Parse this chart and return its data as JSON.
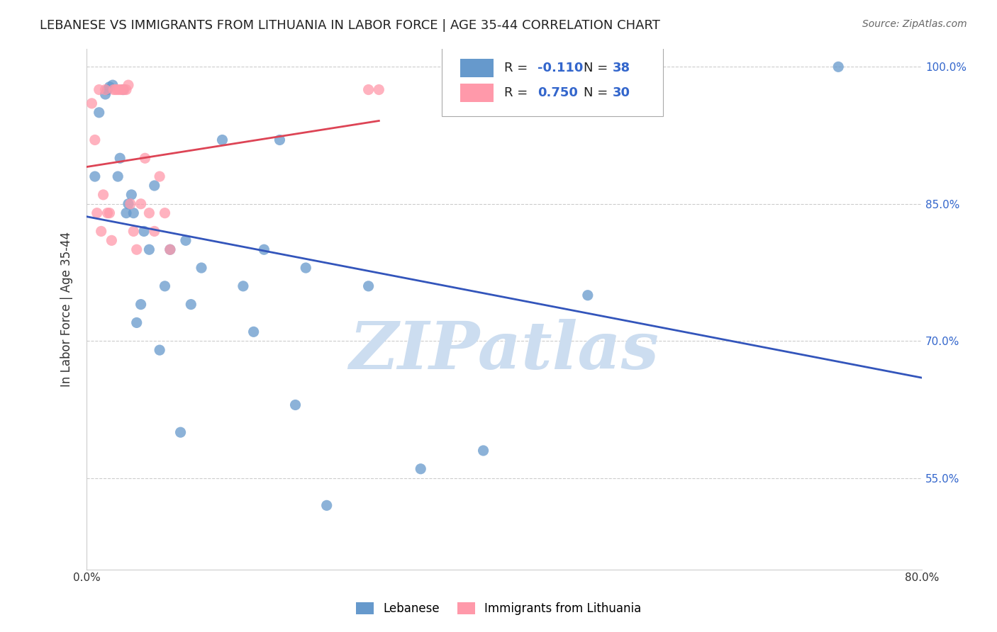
{
  "title": "LEBANESE VS IMMIGRANTS FROM LITHUANIA IN LABOR FORCE | AGE 35-44 CORRELATION CHART",
  "source": "Source: ZipAtlas.com",
  "xlabel": "",
  "ylabel": "In Labor Force | Age 35-44",
  "xlim": [
    0.0,
    0.8
  ],
  "ylim": [
    0.45,
    1.02
  ],
  "xticks": [
    0.0,
    0.1,
    0.2,
    0.3,
    0.4,
    0.5,
    0.6,
    0.7,
    0.8
  ],
  "xtick_labels": [
    "0.0%",
    "",
    "",
    "",
    "",
    "",
    "",
    "",
    "80.0%"
  ],
  "ytick_positions": [
    0.55,
    0.7,
    0.85,
    1.0
  ],
  "ytick_labels": [
    "55.0%",
    "70.0%",
    "85.0%",
    "100.0%"
  ],
  "legend_r1": "R = -0.110",
  "legend_n1": "N = 38",
  "legend_r2": "R = 0.750",
  "legend_n2": "N = 30",
  "blue_color": "#6699CC",
  "pink_color": "#FF99AA",
  "line_blue": "#3355BB",
  "line_pink": "#DD4455",
  "watermark": "ZIPatlas",
  "watermark_color": "#CCDDF0",
  "blue_x": [
    0.008,
    0.012,
    0.018,
    0.02,
    0.022,
    0.025,
    0.03,
    0.032,
    0.035,
    0.038,
    0.04,
    0.043,
    0.045,
    0.048,
    0.052,
    0.055,
    0.06,
    0.065,
    0.07,
    0.075,
    0.08,
    0.09,
    0.095,
    0.1,
    0.11,
    0.13,
    0.15,
    0.16,
    0.17,
    0.185,
    0.2,
    0.21,
    0.23,
    0.27,
    0.32,
    0.38,
    0.48,
    0.72
  ],
  "blue_y": [
    0.88,
    0.95,
    0.97,
    0.975,
    0.978,
    0.98,
    0.88,
    0.9,
    0.975,
    0.84,
    0.85,
    0.86,
    0.84,
    0.72,
    0.74,
    0.82,
    0.8,
    0.87,
    0.69,
    0.76,
    0.8,
    0.6,
    0.81,
    0.74,
    0.78,
    0.92,
    0.76,
    0.71,
    0.8,
    0.92,
    0.63,
    0.78,
    0.52,
    0.76,
    0.56,
    0.58,
    0.75,
    1.0
  ],
  "pink_x": [
    0.005,
    0.008,
    0.01,
    0.012,
    0.014,
    0.016,
    0.018,
    0.02,
    0.022,
    0.024,
    0.026,
    0.028,
    0.03,
    0.032,
    0.034,
    0.036,
    0.038,
    0.04,
    0.042,
    0.045,
    0.048,
    0.052,
    0.056,
    0.06,
    0.065,
    0.07,
    0.075,
    0.08,
    0.27,
    0.28
  ],
  "pink_y": [
    0.96,
    0.92,
    0.84,
    0.975,
    0.82,
    0.86,
    0.975,
    0.84,
    0.84,
    0.81,
    0.975,
    0.975,
    0.975,
    0.975,
    0.975,
    0.975,
    0.975,
    0.98,
    0.85,
    0.82,
    0.8,
    0.85,
    0.9,
    0.84,
    0.82,
    0.88,
    0.84,
    0.8,
    0.975,
    0.975
  ]
}
